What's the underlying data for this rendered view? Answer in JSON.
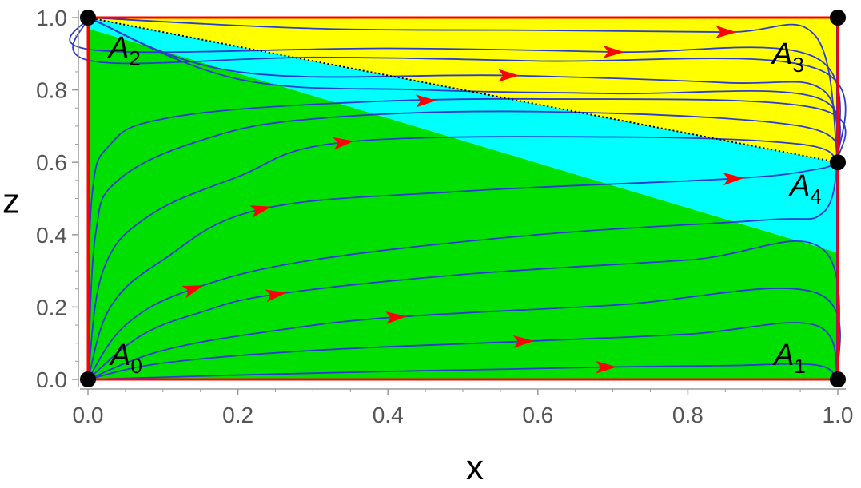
{
  "chart_data": {
    "type": "phase_portrait",
    "xlabel": "x",
    "ylabel": "z",
    "xlim": [
      0.0,
      1.0
    ],
    "ylim": [
      0.0,
      1.0
    ],
    "x_ticks": [
      "0.0",
      "0.2",
      "0.4",
      "0.6",
      "0.8",
      "1.0"
    ],
    "y_ticks": [
      "0.0",
      "0.2",
      "0.4",
      "0.6",
      "0.8",
      "1.0"
    ],
    "colors": {
      "green_region": "#00e000",
      "cyan_region": "#00ffff",
      "yellow_region": "#ffff00",
      "trajectory": "#2b3bd1",
      "arrow": "#ff0000",
      "boundary": "#ff0000",
      "points": "#000000",
      "tick_text": "#555555"
    },
    "regions": [
      {
        "color": "#00e000",
        "polygon": [
          [
            0,
            0
          ],
          [
            1,
            0
          ],
          [
            1,
            0.35
          ],
          [
            0,
            0.97
          ]
        ]
      },
      {
        "color": "#00ffff",
        "polygon": [
          [
            0,
            0.97
          ],
          [
            1,
            0.35
          ],
          [
            1,
            0.6
          ],
          [
            0,
            1.0
          ]
        ]
      },
      {
        "color": "#ffff00",
        "polygon": [
          [
            0,
            1.0
          ],
          [
            1,
            0.6
          ],
          [
            1,
            1.0
          ]
        ]
      }
    ],
    "separatrix": {
      "style": "dotted",
      "from": [
        0,
        1.0
      ],
      "to": [
        1,
        0.6
      ]
    },
    "fixed_points": [
      {
        "name": "A",
        "sub": "0",
        "x": 0.0,
        "z": 0.0
      },
      {
        "name": "A",
        "sub": "1",
        "x": 1.0,
        "z": 0.0
      },
      {
        "name": "A",
        "sub": "2",
        "x": 0.0,
        "z": 1.0
      },
      {
        "name": "A",
        "sub": "3",
        "x": 1.0,
        "z": 1.0
      },
      {
        "name": "A",
        "sub": "4",
        "x": 1.0,
        "z": 0.6
      }
    ],
    "trajectories_from_A0": [
      [
        [
          0,
          0
        ],
        [
          0.2,
          0.012
        ],
        [
          0.4,
          0.022
        ],
        [
          0.6,
          0.03
        ],
        [
          0.69,
          0.034
        ],
        [
          0.85,
          0.038
        ],
        [
          0.97,
          0.04
        ],
        [
          1.0,
          0.0
        ]
      ],
      [
        [
          0,
          0
        ],
        [
          0.1,
          0.045
        ],
        [
          0.3,
          0.08
        ],
        [
          0.58,
          0.105
        ],
        [
          0.8,
          0.125
        ],
        [
          0.97,
          0.15
        ],
        [
          1.0,
          0.0
        ]
      ],
      [
        [
          0,
          0
        ],
        [
          0.1,
          0.08
        ],
        [
          0.25,
          0.135
        ],
        [
          0.41,
          0.172
        ],
        [
          0.7,
          0.205
        ],
        [
          0.97,
          0.24
        ],
        [
          1.0,
          0.0
        ]
      ],
      [
        [
          0,
          0
        ],
        [
          0.07,
          0.12
        ],
        [
          0.15,
          0.185
        ],
        [
          0.25,
          0.235
        ],
        [
          0.5,
          0.29
        ],
        [
          0.8,
          0.33
        ],
        [
          0.98,
          0.36
        ],
        [
          1.0,
          0.0
        ]
      ],
      [
        [
          0,
          0
        ],
        [
          0.05,
          0.15
        ],
        [
          0.14,
          0.25
        ],
        [
          0.3,
          0.33
        ],
        [
          0.6,
          0.4
        ],
        [
          0.9,
          0.44
        ],
        [
          0.98,
          0.46
        ],
        [
          1.0,
          0.6
        ]
      ],
      [
        [
          0,
          0
        ],
        [
          0.03,
          0.2
        ],
        [
          0.1,
          0.33
        ],
        [
          0.23,
          0.47
        ],
        [
          0.5,
          0.52
        ],
        [
          0.86,
          0.555
        ],
        [
          0.97,
          0.58
        ],
        [
          1.0,
          0.6
        ]
      ],
      [
        [
          0,
          0
        ],
        [
          0.02,
          0.3
        ],
        [
          0.08,
          0.45
        ],
        [
          0.2,
          0.56
        ],
        [
          0.34,
          0.655
        ],
        [
          0.7,
          0.67
        ],
        [
          0.95,
          0.65
        ],
        [
          1.0,
          0.6
        ]
      ],
      [
        [
          0,
          0
        ],
        [
          0.01,
          0.4
        ],
        [
          0.04,
          0.55
        ],
        [
          0.15,
          0.66
        ],
        [
          0.3,
          0.72
        ],
        [
          0.6,
          0.74
        ],
        [
          0.95,
          0.7
        ],
        [
          1.0,
          0.6
        ]
      ],
      [
        [
          0,
          0
        ],
        [
          0.005,
          0.5
        ],
        [
          0.03,
          0.65
        ],
        [
          0.1,
          0.72
        ],
        [
          0.3,
          0.76
        ],
        [
          0.6,
          0.775
        ],
        [
          0.97,
          0.75
        ],
        [
          1.0,
          0.6
        ]
      ]
    ],
    "trajectories_from_A2": [
      [
        [
          0,
          1.0
        ],
        [
          0.2,
          0.83
        ],
        [
          0.45,
          0.8
        ],
        [
          0.7,
          0.79
        ],
        [
          0.97,
          0.78
        ],
        [
          1.0,
          0.6
        ]
      ],
      [
        [
          0,
          1.0
        ],
        [
          0.2,
          0.85
        ],
        [
          0.56,
          0.84
        ],
        [
          0.85,
          0.82
        ],
        [
          0.98,
          0.8
        ],
        [
          1.0,
          0.6
        ]
      ],
      [
        [
          0,
          1.0
        ],
        [
          0.005,
          0.88
        ],
        [
          0.3,
          0.89
        ],
        [
          0.6,
          0.88
        ],
        [
          0.97,
          0.86
        ],
        [
          1.0,
          0.6
        ]
      ],
      [
        [
          0,
          1.0
        ],
        [
          0.01,
          0.91
        ],
        [
          0.4,
          0.915
        ],
        [
          0.7,
          0.905
        ],
        [
          0.97,
          0.89
        ],
        [
          1.0,
          0.6
        ]
      ],
      [
        [
          0,
          1.0
        ],
        [
          0.3,
          0.97
        ],
        [
          0.6,
          0.965
        ],
        [
          0.85,
          0.96
        ],
        [
          0.97,
          0.95
        ],
        [
          1.0,
          0.6
        ]
      ]
    ],
    "arrows": [
      {
        "x": 0.69,
        "z": 0.034,
        "dir": 0.02
      },
      {
        "x": 0.58,
        "z": 0.105,
        "dir": 0.08
      },
      {
        "x": 0.41,
        "z": 0.172,
        "dir": 0.15
      },
      {
        "x": 0.25,
        "z": 0.235,
        "dir": 0.3
      },
      {
        "x": 0.14,
        "z": 0.25,
        "dir": 0.7
      },
      {
        "x": 0.23,
        "z": 0.47,
        "dir": 0.5
      },
      {
        "x": 0.34,
        "z": 0.655,
        "dir": 0.25
      },
      {
        "x": 0.45,
        "z": 0.77,
        "dir": 0.05
      },
      {
        "x": 0.56,
        "z": 0.84,
        "dir": 0.0
      },
      {
        "x": 0.7,
        "z": 0.905,
        "dir": -0.02
      },
      {
        "x": 0.85,
        "z": 0.96,
        "dir": -0.02
      },
      {
        "x": 0.86,
        "z": 0.555,
        "dir": 0.1
      }
    ]
  }
}
